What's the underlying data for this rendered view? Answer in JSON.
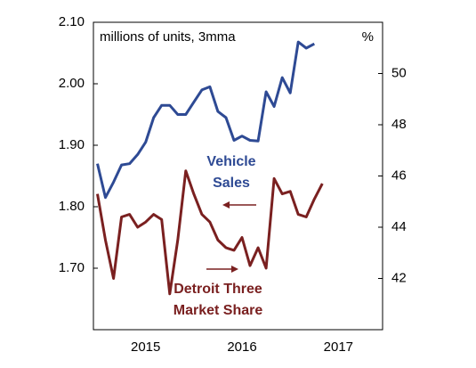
{
  "chart_data": {
    "type": "line",
    "axis_note_left": "millions of units, 3mma",
    "axis_note_right": "%",
    "categories": [
      null,
      null,
      null,
      null,
      null,
      null,
      "2015",
      null,
      null,
      null,
      null,
      null,
      null,
      null,
      null,
      null,
      null,
      null,
      "2016",
      null,
      null,
      null,
      null,
      null,
      null,
      null,
      null,
      null,
      null,
      null,
      "2017",
      null,
      null,
      null,
      null,
      null
    ],
    "series": [
      {
        "name": "Vehicle Sales",
        "label_lines": [
          "Vehicle",
          "Sales"
        ],
        "color": "#2e4a94",
        "axis": "y",
        "values": [
          1.87,
          1.815,
          1.84,
          1.868,
          1.87,
          1.885,
          1.905,
          1.945,
          1.965,
          1.965,
          1.95,
          1.95,
          1.97,
          1.99,
          1.995,
          1.955,
          1.945,
          1.908,
          1.915,
          1.908,
          1.907,
          1.987,
          1.963,
          2.01,
          1.985,
          2.068,
          2.058,
          2.065,
          null,
          null,
          null,
          null,
          null,
          null,
          null,
          null
        ]
      },
      {
        "name": "Detroit Three Market Share",
        "label_lines": [
          "Detroit Three",
          "Market Share"
        ],
        "color": "#7a2020",
        "axis": "y2",
        "values": [
          45.3,
          43.5,
          42.0,
          44.4,
          44.5,
          44.0,
          44.2,
          44.5,
          44.3,
          41.4,
          43.5,
          46.2,
          45.3,
          44.5,
          44.2,
          43.5,
          43.2,
          43.1,
          43.6,
          42.5,
          43.2,
          42.4,
          45.9,
          45.3,
          45.4,
          44.5,
          44.4,
          45.1,
          45.7,
          null,
          null,
          null,
          null,
          null,
          null,
          null
        ]
      }
    ],
    "ylim": [
      1.6,
      2.1
    ],
    "yticks": [
      {
        "value": 1.7,
        "label": "1.70"
      },
      {
        "value": 1.8,
        "label": "1.80"
      },
      {
        "value": 1.9,
        "label": "1.90"
      },
      {
        "value": 2.0,
        "label": "2.00"
      },
      {
        "value": 2.1,
        "label": "2.10"
      }
    ],
    "y2lim": [
      40,
      52
    ],
    "y2ticks": [
      42,
      44,
      46,
      48,
      50
    ]
  }
}
